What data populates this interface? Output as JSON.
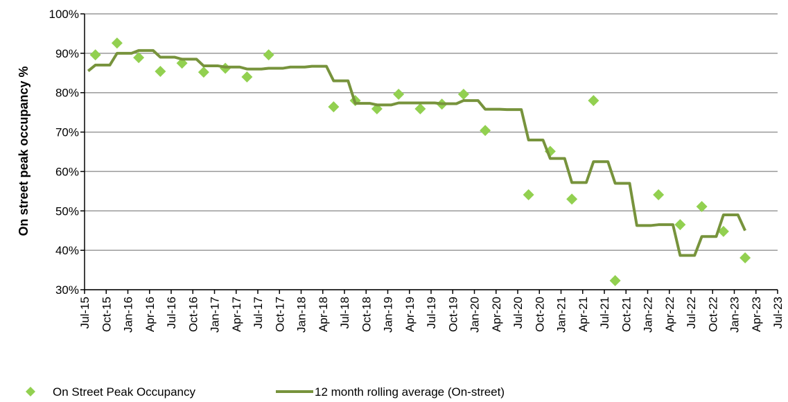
{
  "chart_data": {
    "type": "combo",
    "ylabel": "On street peak occupancy %",
    "ylim": [
      30,
      100
    ],
    "yticks": [
      {
        "value": 30,
        "label": "30%"
      },
      {
        "value": 40,
        "label": "40%"
      },
      {
        "value": 50,
        "label": "50%"
      },
      {
        "value": 60,
        "label": "60%"
      },
      {
        "value": 70,
        "label": "70%"
      },
      {
        "value": 80,
        "label": "80%"
      },
      {
        "value": 90,
        "label": "90%"
      },
      {
        "value": 100,
        "label": "100%"
      }
    ],
    "xlim": [
      "Jul-15",
      "Jul-23"
    ],
    "xticks": [
      "Jul-15",
      "Oct-15",
      "Jan-16",
      "Apr-16",
      "Jul-16",
      "Oct-16",
      "Jan-17",
      "Apr-17",
      "Jul-17",
      "Oct-17",
      "Jan-18",
      "Apr-18",
      "Jul-18",
      "Oct-18",
      "Jan-19",
      "Apr-19",
      "Jul-19",
      "Oct-19",
      "Jan-20",
      "Apr-20",
      "Jul-20",
      "Oct-20",
      "Jan-21",
      "Apr-21",
      "Jul-21",
      "Oct-21",
      "Jan-22",
      "Apr-22",
      "Jul-22",
      "Oct-22",
      "Jan-23",
      "Apr-23",
      "Jul-23"
    ],
    "grid": true,
    "legend": "bottom",
    "series": [
      {
        "name": "On Street Peak Occupancy",
        "type": "scatter",
        "color": "#92d050",
        "x": [
          "Aug-15",
          "Nov-15",
          "Feb-16",
          "May-16",
          "Aug-16",
          "Nov-16",
          "Feb-17",
          "May-17",
          "Aug-17",
          "May-18",
          "Aug-18",
          "Nov-18",
          "Feb-19",
          "May-19",
          "Aug-19",
          "Nov-19",
          "Feb-20",
          "Aug-20",
          "Nov-20",
          "Feb-21",
          "May-21",
          "Aug-21",
          "Feb-22",
          "May-22",
          "Aug-22",
          "Nov-22",
          "Feb-23"
        ],
        "values": [
          89.6,
          92.6,
          88.9,
          85.4,
          87.5,
          85.2,
          86.2,
          84.0,
          89.6,
          76.4,
          78.0,
          75.9,
          79.6,
          75.9,
          77.1,
          79.6,
          70.4,
          54.1,
          65.1,
          53.0,
          78.0,
          32.3,
          54.1,
          46.5,
          51.1,
          44.8,
          38.1
        ]
      },
      {
        "name": "12 month rolling average (On-street)",
        "type": "line",
        "color": "#77933c",
        "x": [
          "Jul-15",
          "Aug-15",
          "Sep-15",
          "Oct-15",
          "Nov-15",
          "Dec-15",
          "Jan-16",
          "Feb-16",
          "Mar-16",
          "Apr-16",
          "May-16",
          "Jun-16",
          "Jul-16",
          "Aug-16",
          "Sep-16",
          "Oct-16",
          "Nov-16",
          "Dec-16",
          "Jan-17",
          "Feb-17",
          "Mar-17",
          "Apr-17",
          "May-17",
          "Jun-17",
          "Jul-17",
          "Aug-17",
          "Sep-17",
          "Oct-17",
          "Nov-17",
          "Dec-17",
          "Jan-18",
          "Feb-18",
          "Mar-18",
          "Apr-18",
          "May-18",
          "Jun-18",
          "Jul-18",
          "Aug-18",
          "Sep-18",
          "Oct-18",
          "Nov-18",
          "Dec-18",
          "Jan-19",
          "Feb-19",
          "Mar-19",
          "Apr-19",
          "May-19",
          "Jun-19",
          "Jul-19",
          "Aug-19",
          "Sep-19",
          "Oct-19",
          "Nov-19",
          "Dec-19",
          "Jan-20",
          "Feb-20",
          "Mar-20",
          "Apr-20",
          "May-20",
          "Jun-20",
          "Jul-20",
          "Aug-20",
          "Sep-20",
          "Oct-20",
          "Nov-20",
          "Dec-20",
          "Jan-21",
          "Feb-21",
          "Mar-21",
          "Apr-21",
          "May-21",
          "Jun-21",
          "Jul-21",
          "Aug-21",
          "Sep-21",
          "Oct-21",
          "Nov-21",
          "Dec-21",
          "Jan-22",
          "Feb-22",
          "Mar-22",
          "Apr-22",
          "May-22",
          "Jun-22",
          "Jul-22",
          "Aug-22",
          "Sep-22",
          "Oct-22",
          "Nov-22",
          "Dec-22",
          "Jan-23",
          "Feb-23"
        ],
        "values": [
          85.5,
          87,
          87,
          87,
          90,
          90,
          90,
          90.7,
          90.7,
          90.7,
          89,
          89,
          89,
          88.5,
          88.5,
          88.5,
          86.8,
          86.8,
          86.8,
          86.5,
          86.5,
          86.5,
          86,
          86,
          86,
          86.2,
          86.2,
          86.2,
          86.5,
          86.5,
          86.5,
          86.7,
          86.7,
          86.7,
          83,
          83,
          83,
          77.3,
          77.3,
          77.3,
          76.9,
          76.9,
          76.9,
          77.4,
          77.4,
          77.4,
          77.4,
          77.4,
          77.4,
          77.2,
          77.2,
          77.2,
          78,
          78,
          78,
          75.8,
          75.8,
          75.8,
          75.7,
          75.7,
          75.7,
          68,
          68,
          68,
          63.3,
          63.3,
          63.3,
          57.2,
          57.2,
          57.2,
          62.5,
          62.5,
          62.5,
          57,
          57,
          57,
          46.3,
          46.3,
          46.3,
          46.5,
          46.5,
          46.5,
          38.7,
          38.7,
          38.7,
          43.5,
          43.5,
          43.5,
          49,
          49,
          49,
          45
        ]
      }
    ]
  }
}
